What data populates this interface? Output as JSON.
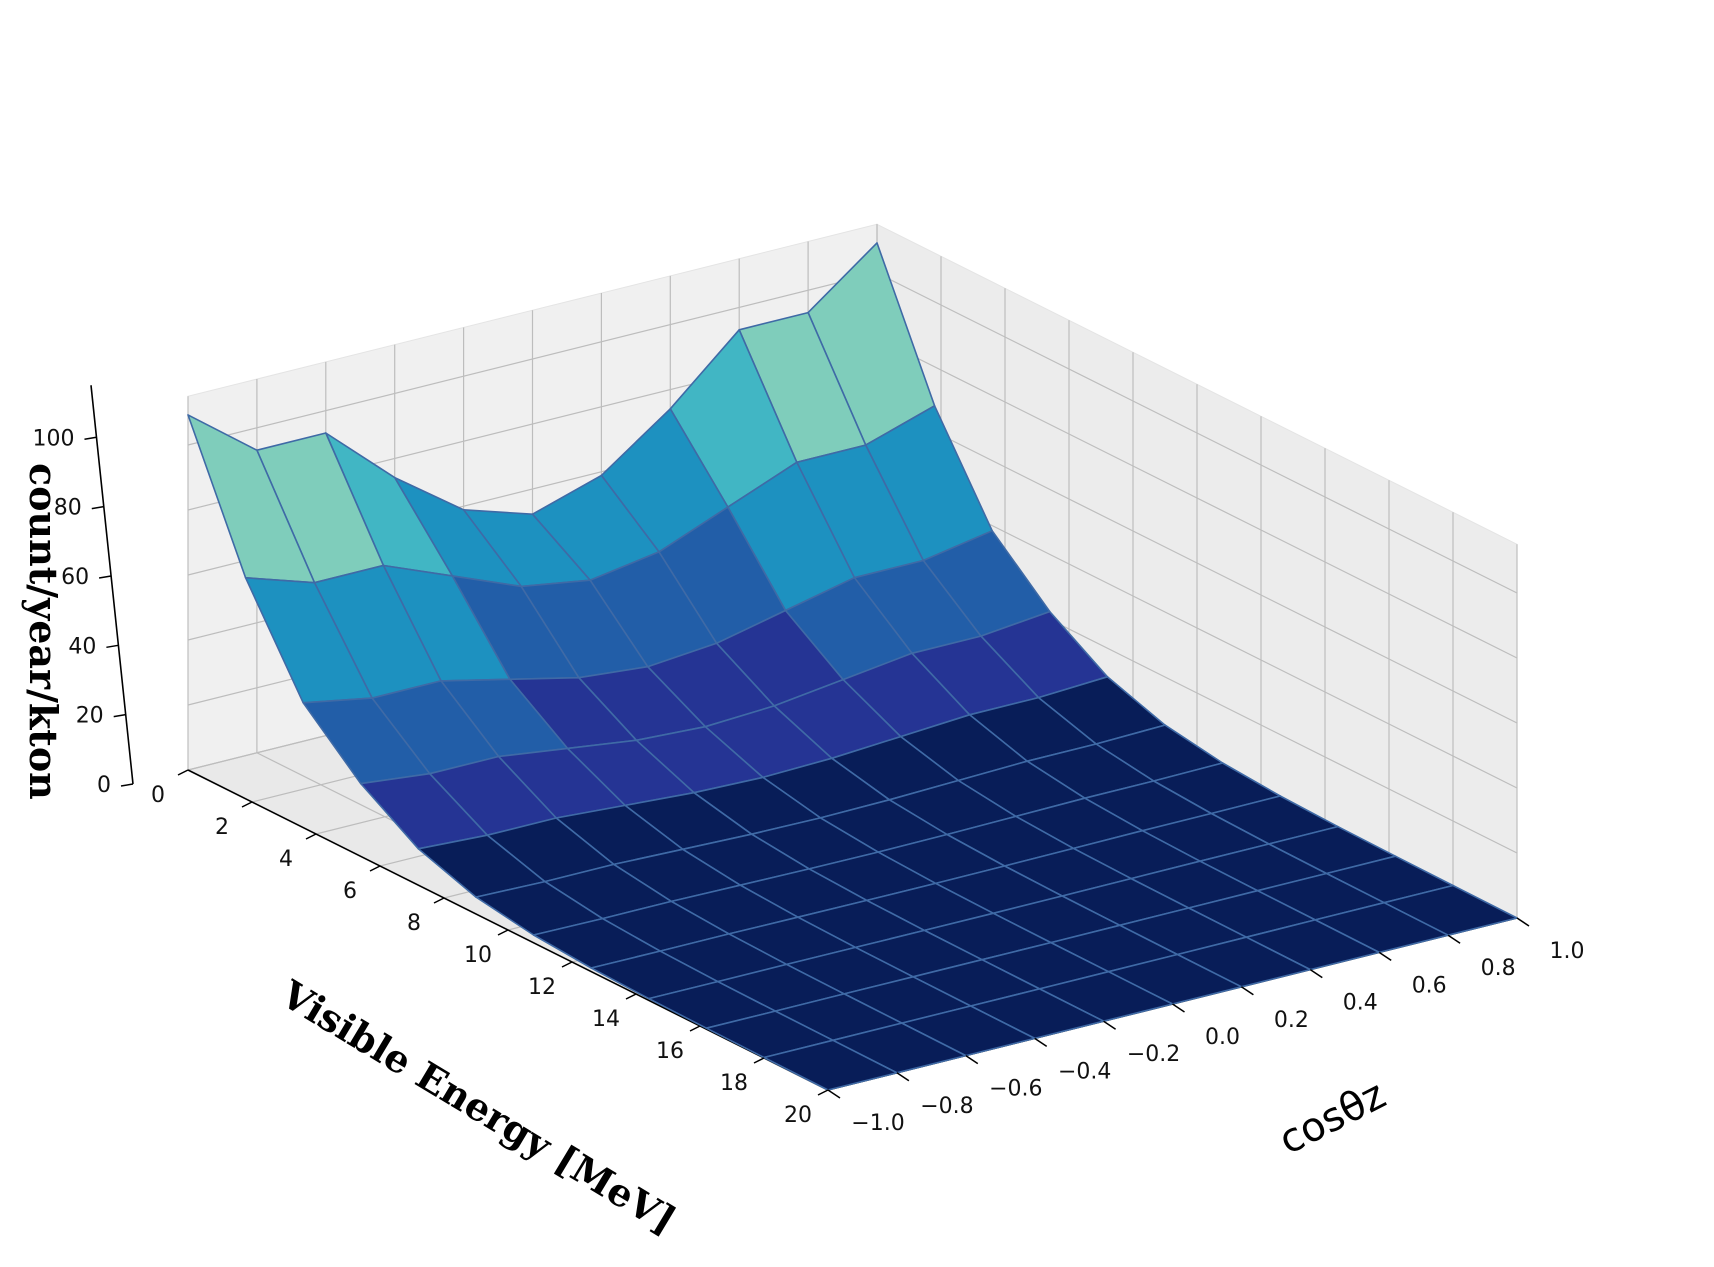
{
  "chart_data": {
    "type": "surface3d",
    "title": "",
    "xlabel": "Visible Energy [MeV]",
    "ylabel": "cosθz",
    "zlabel": "count/year/kton",
    "xlim": [
      0,
      20
    ],
    "ylim": [
      -1.0,
      1.0
    ],
    "zlim": [
      0,
      120
    ],
    "xticks": [
      "0",
      "2",
      "4",
      "6",
      "8",
      "10",
      "12",
      "14",
      "16",
      "18",
      "20"
    ],
    "yticks": [
      "−1.0",
      "−0.8",
      "−0.6",
      "−0.4",
      "−0.2",
      "0.0",
      "0.2",
      "0.4",
      "0.6",
      "0.8",
      "1.0"
    ],
    "zticks": [
      "0",
      "20",
      "40",
      "60",
      "80",
      "100"
    ],
    "grid": true,
    "colormap": [
      "#ffffd9",
      "#c7e9b4",
      "#7fcdbb",
      "#41b6c4",
      "#1d91c0",
      "#225ea8",
      "#253494",
      "#081d58"
    ],
    "surface_edge_color": "#3f6aa6",
    "energy_grid": [
      0.0,
      1.8,
      3.6,
      5.4,
      7.2,
      9.0,
      10.8,
      12.6,
      14.4,
      16.2,
      18.0,
      20.0
    ],
    "cos_grid": [
      -1.0,
      -0.8,
      -0.6,
      -0.4,
      -0.2,
      0.0,
      0.2,
      0.4,
      0.6,
      0.8,
      1.0
    ],
    "cos_peak_values": [
      115,
      98,
      98,
      78,
      62,
      55,
      62,
      78,
      98,
      98,
      115
    ],
    "cos_valley_values": [
      80,
      72,
      72,
      62,
      52,
      48,
      52,
      62,
      72,
      72,
      80
    ],
    "energy_profile": [
      0.92,
      0.72,
      0.48,
      0.28,
      0.14,
      0.065,
      0.03,
      0.014,
      0.007,
      0.004,
      0.002,
      0.0
    ]
  }
}
